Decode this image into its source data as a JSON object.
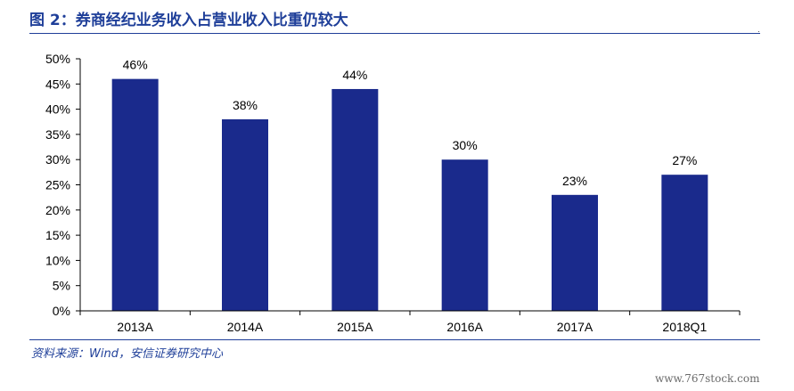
{
  "figure_title": "图 2：券商经纪业务收入占营业收入比重仍较大",
  "source_note": "资料来源：Wind，安信证券研究中心",
  "watermark": "www.767stock.com",
  "corner_mark": "·",
  "colors": {
    "bar": "#1a2a8c",
    "title": "#1f3f99",
    "axis": "#000000"
  },
  "chart_data": {
    "type": "bar",
    "title": "",
    "xlabel": "",
    "ylabel": "",
    "categories": [
      "2013A",
      "2014A",
      "2015A",
      "2016A",
      "2017A",
      "2018Q1"
    ],
    "values": [
      46,
      38,
      44,
      30,
      23,
      27
    ],
    "data_labels": [
      "46%",
      "38%",
      "44%",
      "30%",
      "23%",
      "27%"
    ],
    "ylim": [
      0,
      50
    ],
    "yticks": [
      0,
      5,
      10,
      15,
      20,
      25,
      30,
      35,
      40,
      45,
      50
    ],
    "ytick_labels": [
      "0%",
      "5%",
      "10%",
      "15%",
      "20%",
      "25%",
      "30%",
      "35%",
      "40%",
      "45%",
      "50%"
    ],
    "grid": false,
    "legend": "none"
  }
}
